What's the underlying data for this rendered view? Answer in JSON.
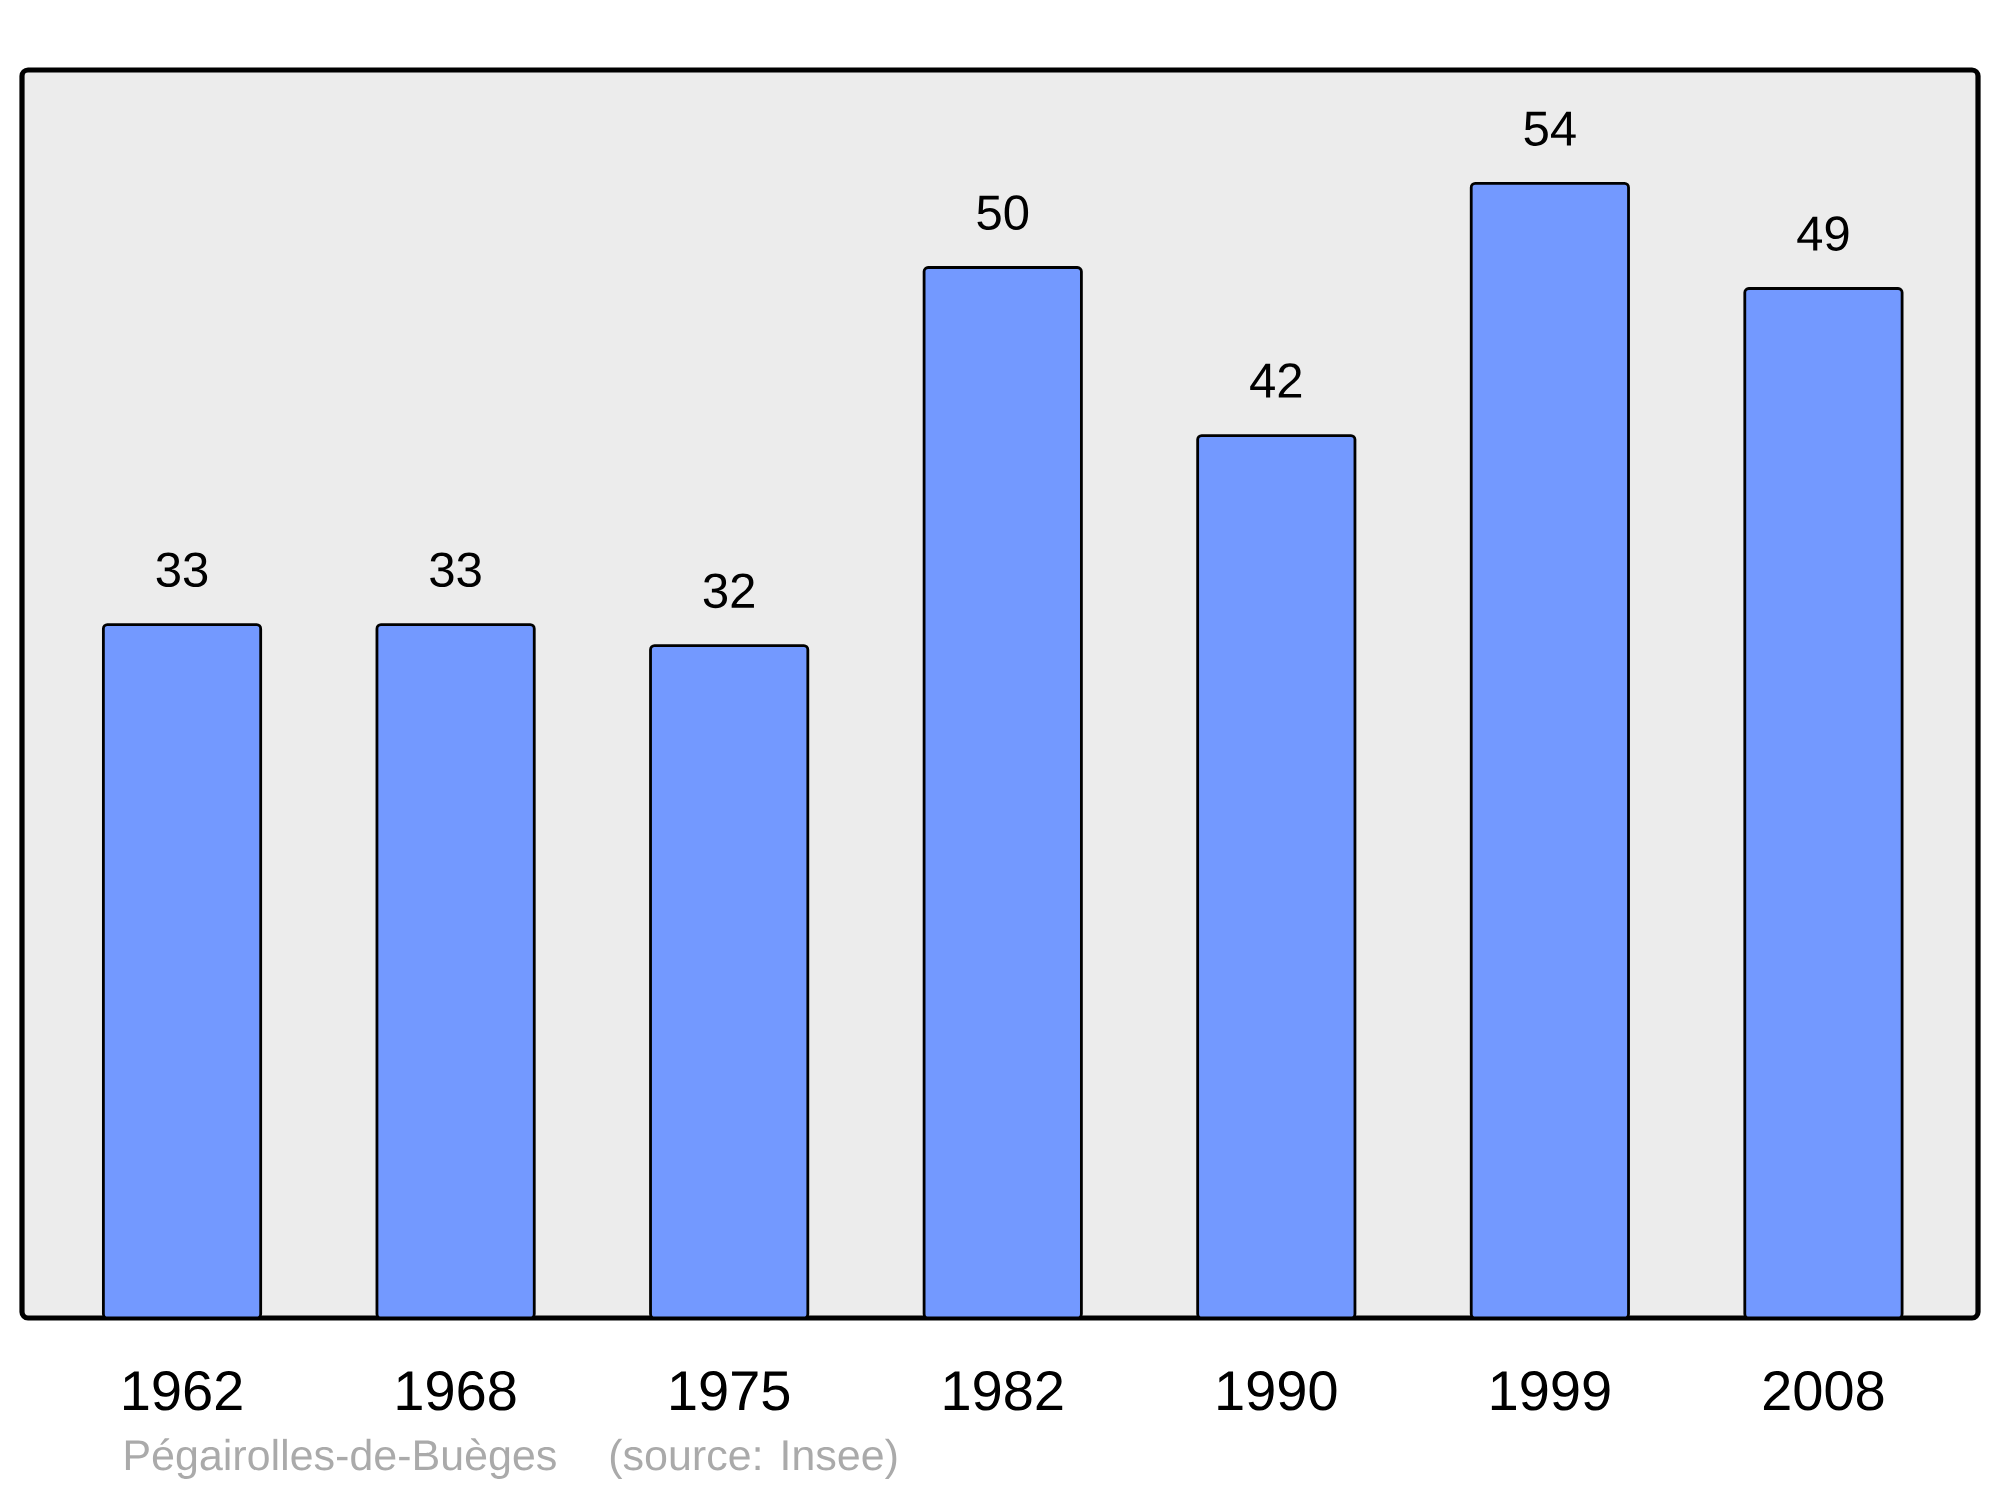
{
  "chart_data": {
    "type": "bar",
    "categories": [
      "1962",
      "1968",
      "1975",
      "1982",
      "1990",
      "1999",
      "2008"
    ],
    "values": [
      33,
      33,
      32,
      50,
      42,
      54,
      49
    ],
    "color": "#7399ff",
    "data_labels": true,
    "tick_labels": "x",
    "annotations": [
      "Pégairolles-de-Buèges",
      "(source: Insee)"
    ]
  }
}
